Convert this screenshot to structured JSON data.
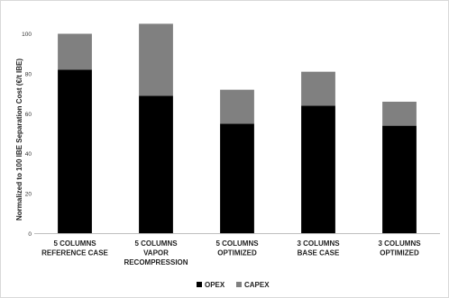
{
  "chart_data": {
    "type": "bar",
    "stacked": true,
    "categories": [
      [
        "5 COLUMNS",
        "REFERENCE CASE"
      ],
      [
        "5 COLUMNS",
        "VAPOR",
        "RECOMPRESSION"
      ],
      [
        "5 COLUMNS",
        "OPTIMIZED"
      ],
      [
        "3 COLUMNS",
        "BASE CASE"
      ],
      [
        "3 COLUMNS",
        "OPTIMIZED"
      ]
    ],
    "series": [
      {
        "name": "OPEX",
        "values": [
          82,
          69,
          55,
          64,
          54
        ],
        "color": "#000000"
      },
      {
        "name": "CAPEX",
        "values": [
          18,
          36,
          17,
          17,
          12
        ],
        "color": "#808080"
      }
    ],
    "ylabel": "Normalized to 100 IBE Separation Cost (€/t IBE)",
    "ylim": [
      0,
      100
    ],
    "yticks": [
      0,
      20,
      40,
      60,
      80,
      100
    ],
    "grid": false,
    "legend_position": "bottom-center",
    "axis_color": "#bfbfbf",
    "frame_color": "#d9d9d9"
  }
}
